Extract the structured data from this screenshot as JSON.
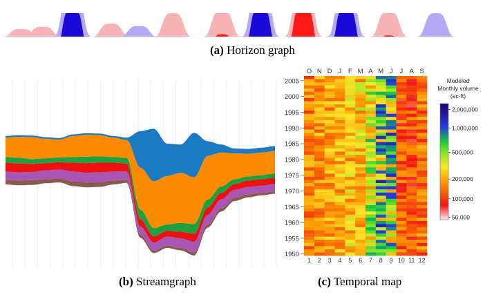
{
  "captions": {
    "a": {
      "label": "(a)",
      "text": "Horizon graph"
    },
    "b": {
      "label": "(b)",
      "text": "Streamgraph"
    },
    "c": {
      "label": "(c)",
      "text": "Temporal map"
    }
  },
  "chart_data": [
    {
      "type": "area",
      "subtype": "horizon",
      "title": "",
      "bands": [
        {
          "center": 0.3,
          "amp": 0.32,
          "sign": "pos"
        },
        {
          "center": 0.8,
          "amp": 0.42,
          "sign": "pos"
        },
        {
          "center": 1.5,
          "amp": 2.2,
          "sign": "neg"
        },
        {
          "center": 2.4,
          "amp": 0.55,
          "sign": "pos"
        },
        {
          "center": 3.05,
          "amp": 0.45,
          "sign": "neg"
        },
        {
          "center": 3.85,
          "amp": 1.0,
          "sign": "pos"
        },
        {
          "center": 5.0,
          "amp": 1.1,
          "sign": "pos"
        },
        {
          "center": 5.9,
          "amp": 2.3,
          "sign": "neg"
        },
        {
          "center": 6.9,
          "amp": 2.4,
          "sign": "pos"
        },
        {
          "center": 7.9,
          "amp": 2.3,
          "sign": "neg"
        },
        {
          "center": 8.9,
          "amp": 1.05,
          "sign": "pos"
        },
        {
          "center": 10.0,
          "amp": 1.0,
          "sign": "neg"
        }
      ],
      "colors": {
        "pos": [
          "#f8b4b4",
          "#ff1a1a"
        ],
        "neg": [
          "#b3a9f5",
          "#1a08d8"
        ]
      }
    },
    {
      "type": "area",
      "subtype": "streamgraph",
      "x": [
        0,
        1,
        2,
        3,
        4,
        5,
        6,
        7,
        8,
        9,
        10,
        11,
        12,
        13,
        14,
        15,
        16,
        17,
        18,
        19,
        20
      ],
      "series": [
        {
          "color": "#8b5a4e",
          "values": [
            6,
            6,
            6,
            5,
            5,
            6,
            6,
            6,
            5,
            4,
            4,
            3,
            3,
            3,
            4,
            4,
            4,
            4,
            4,
            3,
            3
          ]
        },
        {
          "color": "#a855b3",
          "values": [
            10,
            10,
            10,
            11,
            11,
            12,
            12,
            12,
            11,
            10,
            10,
            10,
            11,
            12,
            13,
            12,
            11,
            10,
            9,
            9,
            9
          ]
        },
        {
          "color": "#ee1111",
          "values": [
            11,
            11,
            10,
            9,
            9,
            11,
            12,
            12,
            11,
            10,
            9,
            8,
            7,
            8,
            10,
            9,
            8,
            7,
            8,
            8,
            8
          ]
        },
        {
          "color": "#1f9f3d",
          "values": [
            7,
            7,
            6,
            6,
            6,
            7,
            8,
            8,
            7,
            7,
            12,
            10,
            8,
            11,
            12,
            10,
            8,
            6,
            5,
            5,
            5
          ]
        },
        {
          "color": "#fb8c00",
          "values": [
            24,
            26,
            27,
            24,
            22,
            26,
            27,
            26,
            24,
            22,
            52,
            58,
            60,
            62,
            58,
            54,
            42,
            32,
            28,
            28,
            28
          ]
        },
        {
          "color": "#1c7ac2",
          "values": [
            2,
            2,
            2,
            2,
            2,
            2,
            2,
            2,
            2,
            3,
            45,
            65,
            40,
            35,
            55,
            18,
            10,
            6,
            6,
            6,
            6
          ]
        }
      ]
    },
    {
      "type": "heatmap",
      "title": "Modeled Monthly volume (ac-ft)",
      "x_top_labels": [
        "O",
        "N",
        "D",
        "J",
        "F",
        "M",
        "A",
        "M",
        "J",
        "J",
        "A",
        "S"
      ],
      "x_bottom_labels": [
        "1",
        "2",
        "3",
        "4",
        "5",
        "6",
        "7",
        "8",
        "9",
        "10",
        "11",
        "12"
      ],
      "y_labels": [
        "2005",
        "2000",
        "1995",
        "1990",
        "1985",
        "1980",
        "1975",
        "1970",
        "1965",
        "1960",
        "1955",
        "1950"
      ],
      "y_range": [
        1950,
        2007
      ],
      "colorbar_ticks": [
        "2,000,000",
        "1,000,000",
        "500,000",
        "200,000",
        "100,000",
        "50,000"
      ]
    }
  ]
}
